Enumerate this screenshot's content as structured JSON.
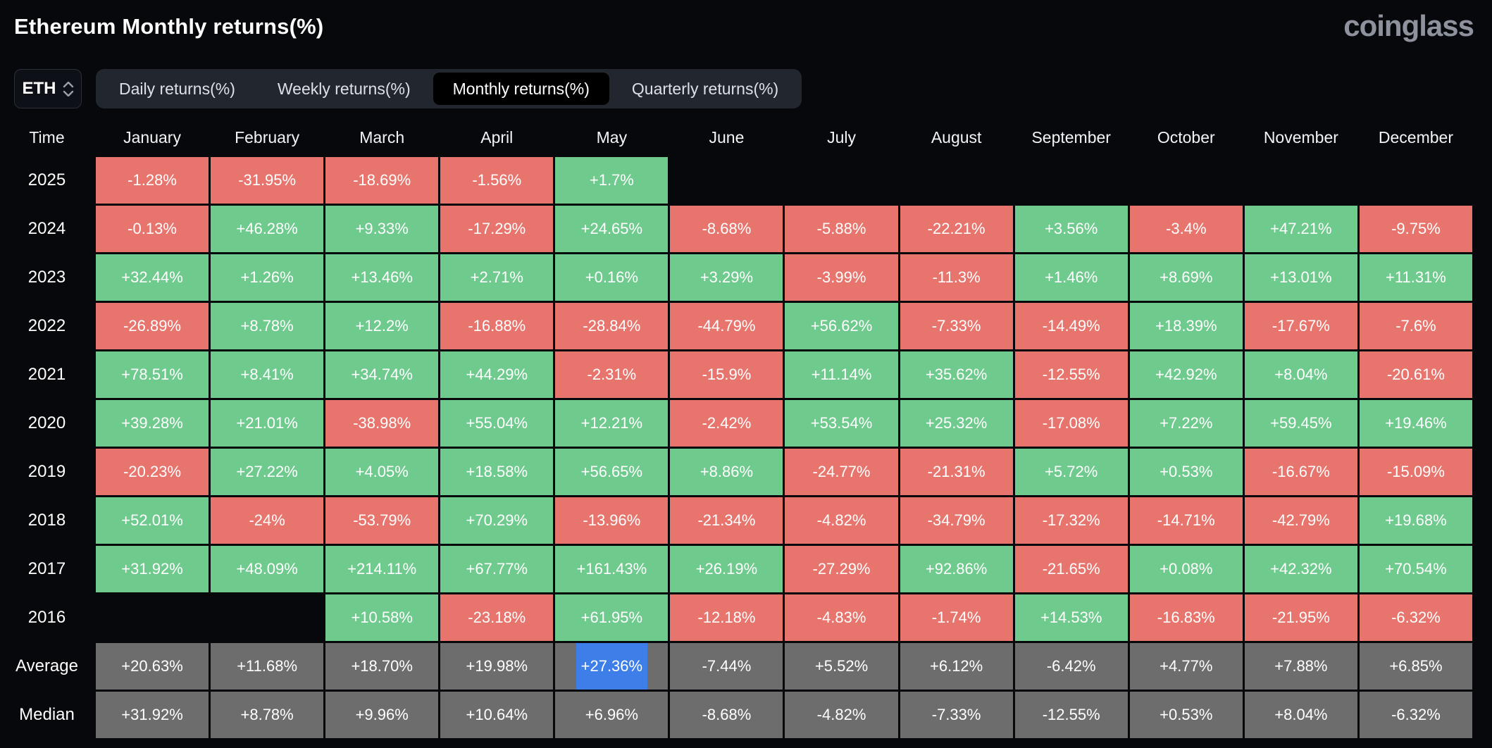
{
  "header": {
    "title": "Ethereum Monthly returns(%)",
    "logo_text": "coinglass"
  },
  "controls": {
    "symbol_select": {
      "value": "ETH",
      "icon": "chevron-up-down-icon"
    },
    "tabs": [
      {
        "label": "Daily returns(%)",
        "active": false
      },
      {
        "label": "Weekly returns(%)",
        "active": false
      },
      {
        "label": "Monthly returns(%)",
        "active": true
      },
      {
        "label": "Quarterly returns(%)",
        "active": false
      }
    ]
  },
  "chart_data": {
    "type": "heatmap",
    "title": "Ethereum Monthly returns(%)",
    "unit": "%",
    "legend": "green = positive monthly return, red = negative monthly return, gray = summary rows",
    "columns": [
      "Time",
      "January",
      "February",
      "March",
      "April",
      "May",
      "June",
      "July",
      "August",
      "September",
      "October",
      "November",
      "December"
    ],
    "rows": [
      {
        "label": "2025",
        "cells": [
          {
            "v": "-1.28%",
            "t": "n"
          },
          {
            "v": "-31.95%",
            "t": "n"
          },
          {
            "v": "-18.69%",
            "t": "n"
          },
          {
            "v": "-1.56%",
            "t": "n"
          },
          {
            "v": "+1.7%",
            "t": "p"
          },
          {
            "v": "",
            "t": "e"
          },
          {
            "v": "",
            "t": "e"
          },
          {
            "v": "",
            "t": "e"
          },
          {
            "v": "",
            "t": "e"
          },
          {
            "v": "",
            "t": "e"
          },
          {
            "v": "",
            "t": "e"
          },
          {
            "v": "",
            "t": "e"
          }
        ]
      },
      {
        "label": "2024",
        "cells": [
          {
            "v": "-0.13%",
            "t": "n"
          },
          {
            "v": "+46.28%",
            "t": "p"
          },
          {
            "v": "+9.33%",
            "t": "p"
          },
          {
            "v": "-17.29%",
            "t": "n"
          },
          {
            "v": "+24.65%",
            "t": "p"
          },
          {
            "v": "-8.68%",
            "t": "n"
          },
          {
            "v": "-5.88%",
            "t": "n"
          },
          {
            "v": "-22.21%",
            "t": "n"
          },
          {
            "v": "+3.56%",
            "t": "p"
          },
          {
            "v": "-3.4%",
            "t": "n"
          },
          {
            "v": "+47.21%",
            "t": "p"
          },
          {
            "v": "-9.75%",
            "t": "n"
          }
        ]
      },
      {
        "label": "2023",
        "cells": [
          {
            "v": "+32.44%",
            "t": "p"
          },
          {
            "v": "+1.26%",
            "t": "p"
          },
          {
            "v": "+13.46%",
            "t": "p"
          },
          {
            "v": "+2.71%",
            "t": "p"
          },
          {
            "v": "+0.16%",
            "t": "p"
          },
          {
            "v": "+3.29%",
            "t": "p"
          },
          {
            "v": "-3.99%",
            "t": "n"
          },
          {
            "v": "-11.3%",
            "t": "n"
          },
          {
            "v": "+1.46%",
            "t": "p"
          },
          {
            "v": "+8.69%",
            "t": "p"
          },
          {
            "v": "+13.01%",
            "t": "p"
          },
          {
            "v": "+11.31%",
            "t": "p"
          }
        ]
      },
      {
        "label": "2022",
        "cells": [
          {
            "v": "-26.89%",
            "t": "n"
          },
          {
            "v": "+8.78%",
            "t": "p"
          },
          {
            "v": "+12.2%",
            "t": "p"
          },
          {
            "v": "-16.88%",
            "t": "n"
          },
          {
            "v": "-28.84%",
            "t": "n"
          },
          {
            "v": "-44.79%",
            "t": "n"
          },
          {
            "v": "+56.62%",
            "t": "p"
          },
          {
            "v": "-7.33%",
            "t": "n"
          },
          {
            "v": "-14.49%",
            "t": "n"
          },
          {
            "v": "+18.39%",
            "t": "p"
          },
          {
            "v": "-17.67%",
            "t": "n"
          },
          {
            "v": "-7.6%",
            "t": "n"
          }
        ]
      },
      {
        "label": "2021",
        "cells": [
          {
            "v": "+78.51%",
            "t": "p"
          },
          {
            "v": "+8.41%",
            "t": "p"
          },
          {
            "v": "+34.74%",
            "t": "p"
          },
          {
            "v": "+44.29%",
            "t": "p"
          },
          {
            "v": "-2.31%",
            "t": "n"
          },
          {
            "v": "-15.9%",
            "t": "n"
          },
          {
            "v": "+11.14%",
            "t": "p"
          },
          {
            "v": "+35.62%",
            "t": "p"
          },
          {
            "v": "-12.55%",
            "t": "n"
          },
          {
            "v": "+42.92%",
            "t": "p"
          },
          {
            "v": "+8.04%",
            "t": "p"
          },
          {
            "v": "-20.61%",
            "t": "n"
          }
        ]
      },
      {
        "label": "2020",
        "cells": [
          {
            "v": "+39.28%",
            "t": "p"
          },
          {
            "v": "+21.01%",
            "t": "p"
          },
          {
            "v": "-38.98%",
            "t": "n"
          },
          {
            "v": "+55.04%",
            "t": "p"
          },
          {
            "v": "+12.21%",
            "t": "p"
          },
          {
            "v": "-2.42%",
            "t": "n"
          },
          {
            "v": "+53.54%",
            "t": "p"
          },
          {
            "v": "+25.32%",
            "t": "p"
          },
          {
            "v": "-17.08%",
            "t": "n"
          },
          {
            "v": "+7.22%",
            "t": "p"
          },
          {
            "v": "+59.45%",
            "t": "p"
          },
          {
            "v": "+19.46%",
            "t": "p"
          }
        ]
      },
      {
        "label": "2019",
        "cells": [
          {
            "v": "-20.23%",
            "t": "n"
          },
          {
            "v": "+27.22%",
            "t": "p"
          },
          {
            "v": "+4.05%",
            "t": "p"
          },
          {
            "v": "+18.58%",
            "t": "p"
          },
          {
            "v": "+56.65%",
            "t": "p"
          },
          {
            "v": "+8.86%",
            "t": "p"
          },
          {
            "v": "-24.77%",
            "t": "n"
          },
          {
            "v": "-21.31%",
            "t": "n"
          },
          {
            "v": "+5.72%",
            "t": "p"
          },
          {
            "v": "+0.53%",
            "t": "p"
          },
          {
            "v": "-16.67%",
            "t": "n"
          },
          {
            "v": "-15.09%",
            "t": "n"
          }
        ]
      },
      {
        "label": "2018",
        "cells": [
          {
            "v": "+52.01%",
            "t": "p"
          },
          {
            "v": "-24%",
            "t": "n"
          },
          {
            "v": "-53.79%",
            "t": "n"
          },
          {
            "v": "+70.29%",
            "t": "p"
          },
          {
            "v": "-13.96%",
            "t": "n"
          },
          {
            "v": "-21.34%",
            "t": "n"
          },
          {
            "v": "-4.82%",
            "t": "n"
          },
          {
            "v": "-34.79%",
            "t": "n"
          },
          {
            "v": "-17.32%",
            "t": "n"
          },
          {
            "v": "-14.71%",
            "t": "n"
          },
          {
            "v": "-42.79%",
            "t": "n"
          },
          {
            "v": "+19.68%",
            "t": "p"
          }
        ]
      },
      {
        "label": "2017",
        "cells": [
          {
            "v": "+31.92%",
            "t": "p"
          },
          {
            "v": "+48.09%",
            "t": "p"
          },
          {
            "v": "+214.11%",
            "t": "p"
          },
          {
            "v": "+67.77%",
            "t": "p"
          },
          {
            "v": "+161.43%",
            "t": "p"
          },
          {
            "v": "+26.19%",
            "t": "p"
          },
          {
            "v": "-27.29%",
            "t": "n"
          },
          {
            "v": "+92.86%",
            "t": "p"
          },
          {
            "v": "-21.65%",
            "t": "n"
          },
          {
            "v": "+0.08%",
            "t": "p"
          },
          {
            "v": "+42.32%",
            "t": "p"
          },
          {
            "v": "+70.54%",
            "t": "p"
          }
        ]
      },
      {
        "label": "2016",
        "cells": [
          {
            "v": "",
            "t": "e"
          },
          {
            "v": "",
            "t": "e"
          },
          {
            "v": "+10.58%",
            "t": "p"
          },
          {
            "v": "-23.18%",
            "t": "n"
          },
          {
            "v": "+61.95%",
            "t": "p"
          },
          {
            "v": "-12.18%",
            "t": "n"
          },
          {
            "v": "-4.83%",
            "t": "n"
          },
          {
            "v": "-1.74%",
            "t": "n"
          },
          {
            "v": "+14.53%",
            "t": "p"
          },
          {
            "v": "-16.83%",
            "t": "n"
          },
          {
            "v": "-21.95%",
            "t": "n"
          },
          {
            "v": "-6.32%",
            "t": "n"
          }
        ]
      },
      {
        "label": "Average",
        "cells": [
          {
            "v": "+20.63%",
            "t": "s"
          },
          {
            "v": "+11.68%",
            "t": "s"
          },
          {
            "v": "+18.70%",
            "t": "s"
          },
          {
            "v": "+19.98%",
            "t": "s"
          },
          {
            "v": "+27.36%",
            "t": "s",
            "hl": true
          },
          {
            "v": "-7.44%",
            "t": "s"
          },
          {
            "v": "+5.52%",
            "t": "s"
          },
          {
            "v": "+6.12%",
            "t": "s"
          },
          {
            "v": "-6.42%",
            "t": "s"
          },
          {
            "v": "+4.77%",
            "t": "s"
          },
          {
            "v": "+7.88%",
            "t": "s"
          },
          {
            "v": "+6.85%",
            "t": "s"
          }
        ]
      },
      {
        "label": "Median",
        "cells": [
          {
            "v": "+31.92%",
            "t": "s"
          },
          {
            "v": "+8.78%",
            "t": "s"
          },
          {
            "v": "+9.96%",
            "t": "s"
          },
          {
            "v": "+10.64%",
            "t": "s"
          },
          {
            "v": "+6.96%",
            "t": "s"
          },
          {
            "v": "-8.68%",
            "t": "s"
          },
          {
            "v": "-4.82%",
            "t": "s"
          },
          {
            "v": "-7.33%",
            "t": "s"
          },
          {
            "v": "-12.55%",
            "t": "s"
          },
          {
            "v": "+0.53%",
            "t": "s"
          },
          {
            "v": "+8.04%",
            "t": "s"
          },
          {
            "v": "-6.32%",
            "t": "s"
          }
        ]
      }
    ],
    "highlighted_cell": {
      "row": "Average",
      "column": "May",
      "value": "+27.36%"
    }
  },
  "colors": {
    "background": "#06080c",
    "positive": "#6fca8d",
    "negative": "#e8756d",
    "neutral": "#6d6d6e",
    "highlight": "#3d7ee8",
    "tab_bg": "#22262e",
    "tab_active_bg": "#000000",
    "logo_gray": "#8d929c"
  }
}
